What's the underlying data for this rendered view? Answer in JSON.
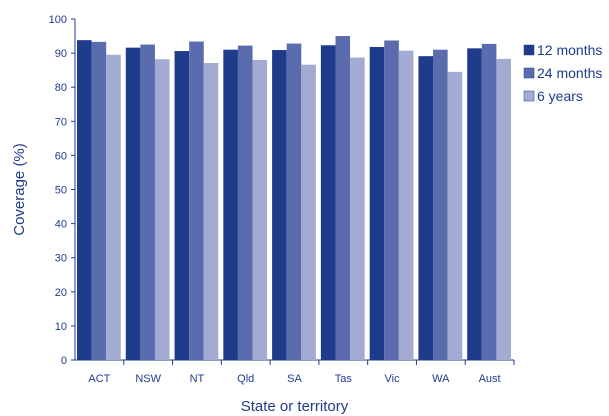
{
  "chart_data": {
    "type": "bar",
    "xlabel": "State or territory",
    "ylabel": "Coverage (%)",
    "ylim": [
      0,
      100
    ],
    "yticks": [
      0,
      10,
      20,
      30,
      40,
      50,
      60,
      70,
      80,
      90,
      100
    ],
    "categories": [
      "ACT",
      "NSW",
      "NT",
      "Qld",
      "SA",
      "Tas",
      "Vic",
      "WA",
      "Aust"
    ],
    "series": [
      {
        "name": "12 months",
        "color": "#1f3c8c",
        "values": [
          93.8,
          91.6,
          90.6,
          91.0,
          90.9,
          92.3,
          91.8,
          89.1,
          91.4
        ]
      },
      {
        "name": "24 months",
        "color": "#5a6cae",
        "values": [
          93.3,
          92.5,
          93.4,
          92.2,
          92.8,
          95.0,
          93.7,
          91.0,
          92.7
        ]
      },
      {
        "name": "6 years",
        "color": "#a3abd3",
        "values": [
          89.5,
          88.2,
          87.1,
          88.0,
          86.6,
          88.7,
          90.7,
          84.5,
          88.3
        ]
      }
    ],
    "legend_position": "right",
    "grid": false
  }
}
